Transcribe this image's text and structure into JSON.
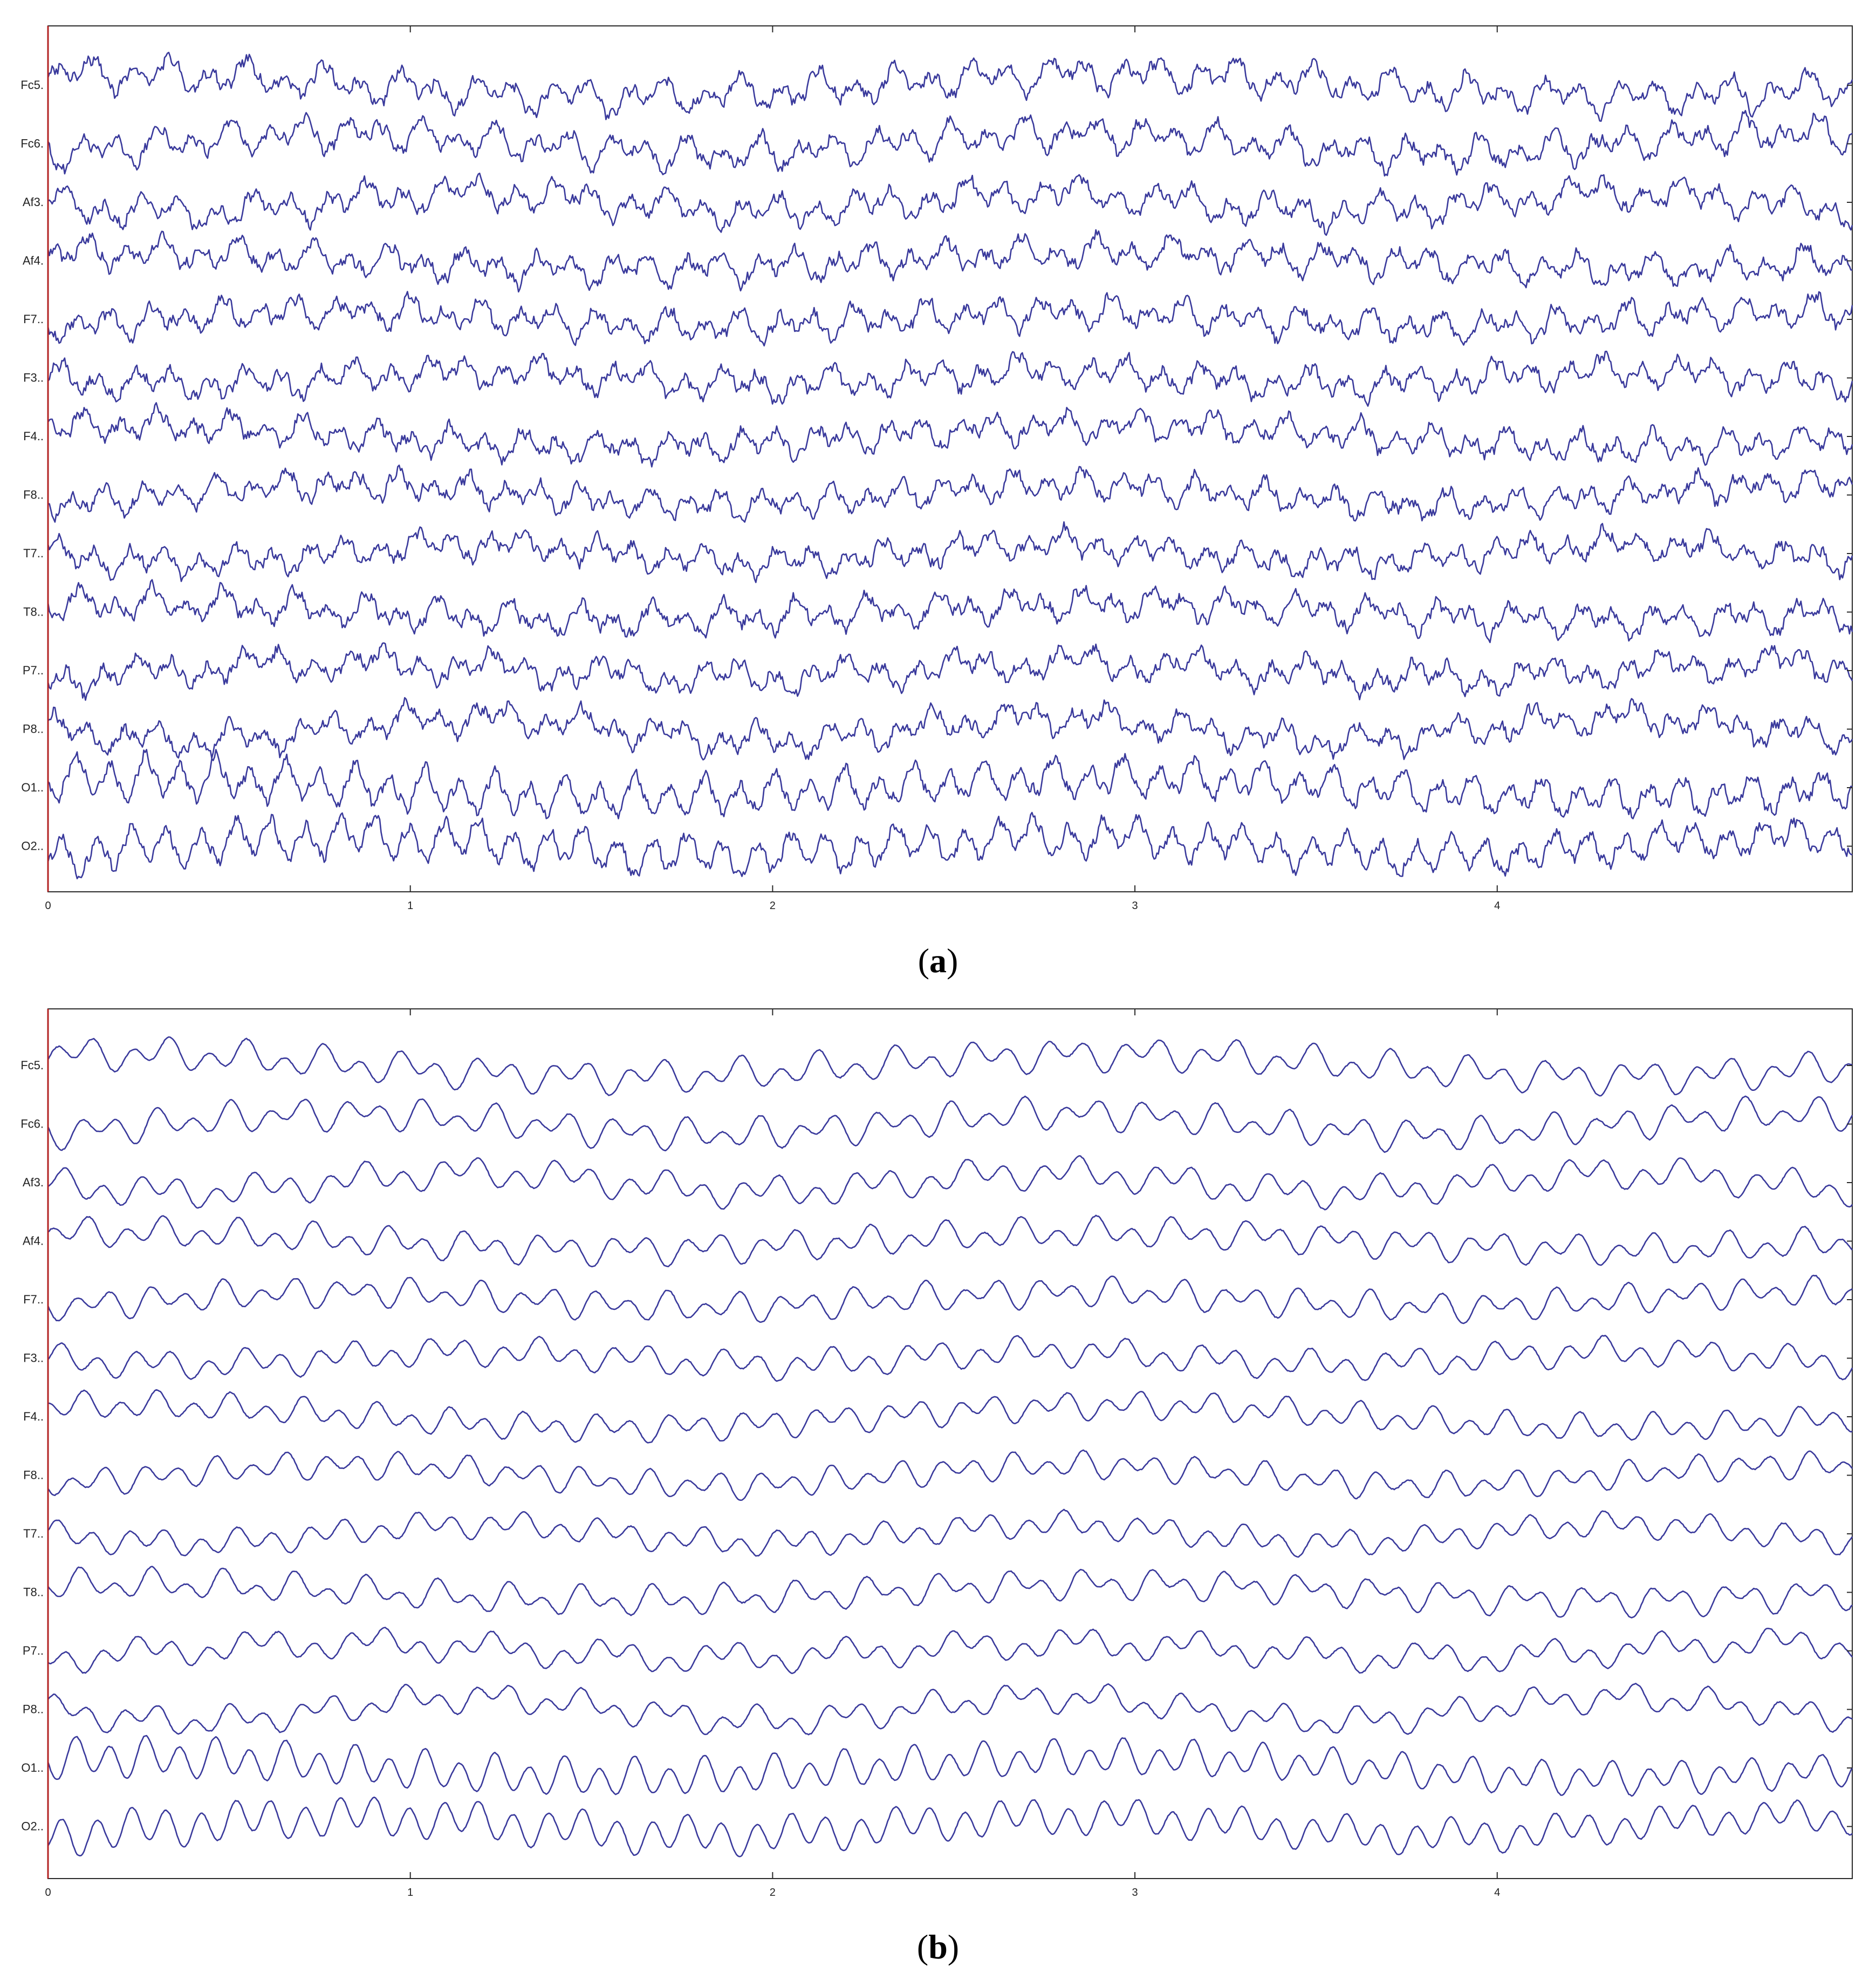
{
  "chart_data": [
    {
      "type": "line",
      "panel": "a",
      "caption_letter": "a",
      "channels": [
        "Fc5.",
        "Fc6.",
        "Af3.",
        "Af4.",
        "F7..",
        "F3..",
        "F4..",
        "F8..",
        "T7..",
        "T8..",
        "P7..",
        "P8..",
        "O1..",
        "O2.."
      ],
      "x_ticks": [
        "0",
        "1",
        "2",
        "3",
        "4"
      ],
      "xlim": [
        0,
        4.98
      ],
      "grid": false,
      "signal": "raw"
    },
    {
      "type": "line",
      "panel": "b",
      "caption_letter": "b",
      "channels": [
        "Fc5.",
        "Fc6.",
        "Af3.",
        "Af4.",
        "F7..",
        "F3..",
        "F4..",
        "F8..",
        "T7..",
        "T8..",
        "P7..",
        "P8..",
        "O1..",
        "O2.."
      ],
      "x_ticks": [
        "0",
        "1",
        "2",
        "3",
        "4"
      ],
      "xlim": [
        0,
        4.98
      ],
      "grid": false,
      "signal": "filtered"
    }
  ],
  "colors": {
    "trace": "#3a3a9c",
    "cursor": "#b22222",
    "frame": "#2a2a2a"
  }
}
